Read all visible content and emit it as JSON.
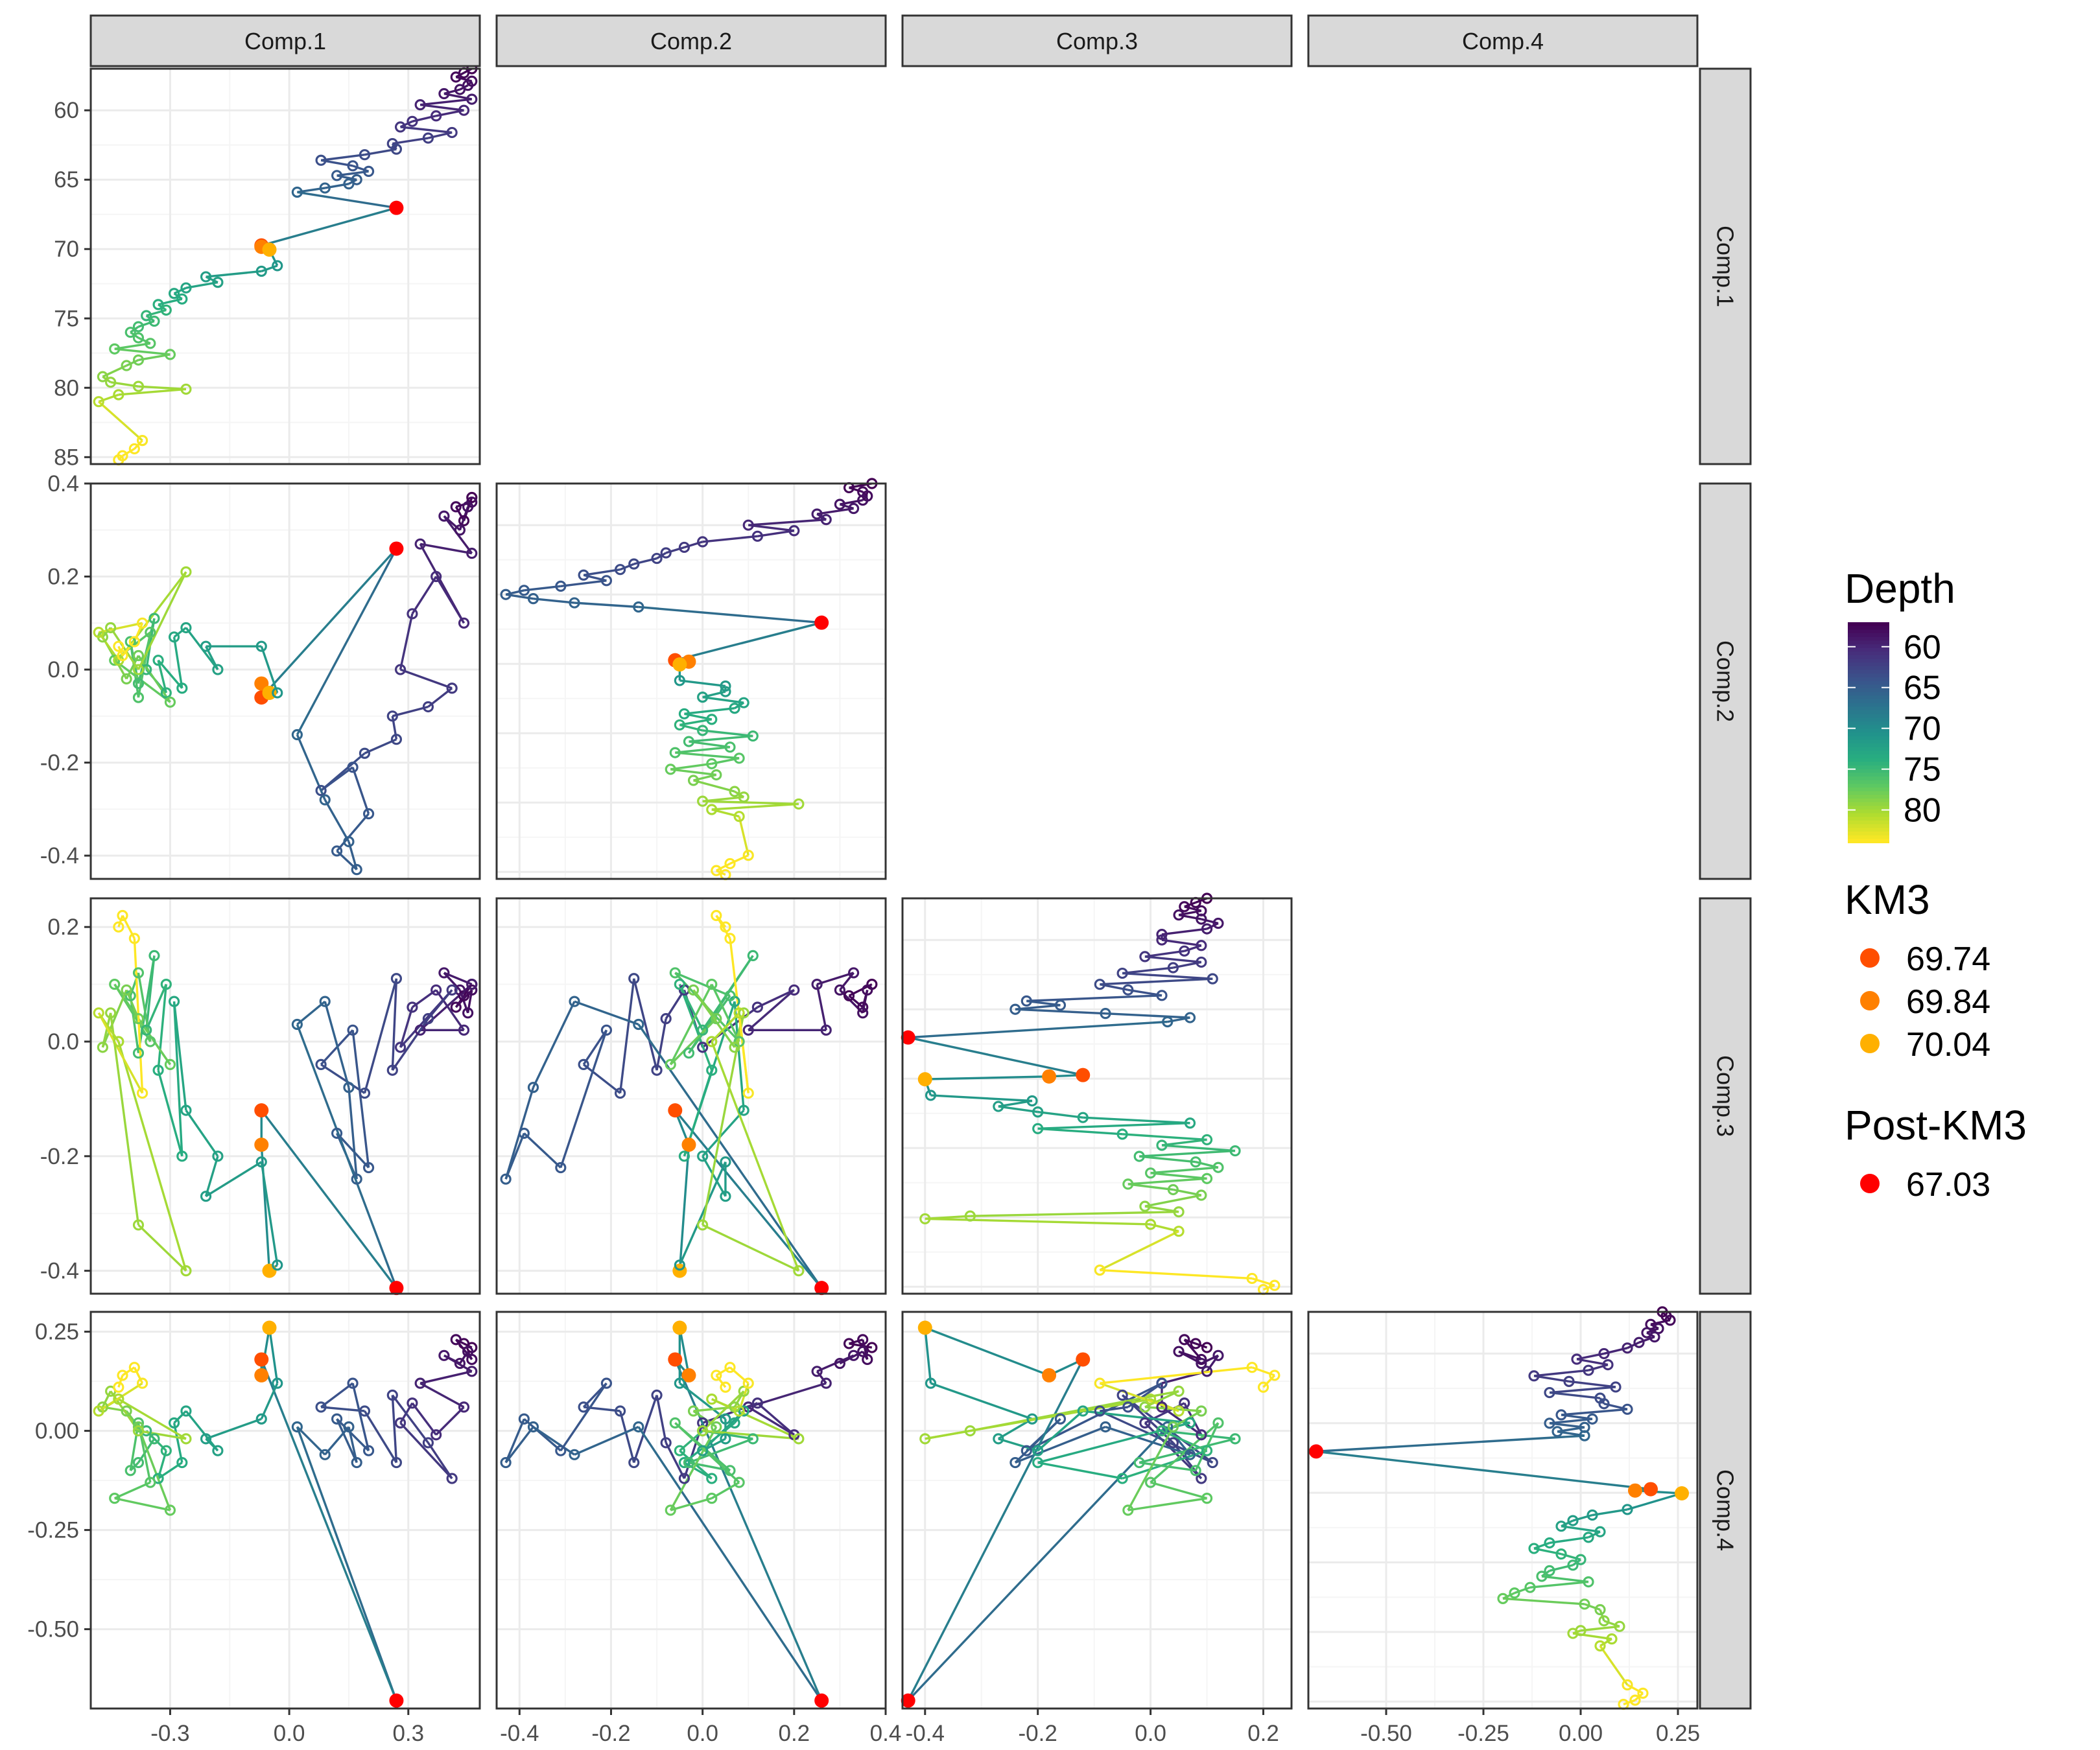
{
  "chart_data": {
    "type": "scatter",
    "layout": "pairs-matrix (lower triangle), points joined by path in depth order",
    "variables": [
      "Comp.1",
      "Comp.2",
      "Comp.3",
      "Comp.4"
    ],
    "diagonal_y_axis": "Depth",
    "color_scale": {
      "title": "Depth",
      "palette": "viridis (reversed: shallow = dark purple, deep = yellow)",
      "breaks": [
        "60",
        "65",
        "70",
        "75",
        "80"
      ],
      "range": [
        57,
        84
      ]
    },
    "axes": {
      "Comp.1": {
        "range": [
          -0.5,
          0.48
        ],
        "ticks": [
          "-0.3",
          "0.0",
          "0.3"
        ]
      },
      "Comp.2": {
        "range": [
          -0.45,
          0.4
        ],
        "ticks": [
          "-0.4",
          "-0.2",
          "0.0",
          "0.2",
          "0.4"
        ]
      },
      "Comp.3": {
        "range": [
          -0.44,
          0.25
        ],
        "ticks": [
          "-0.4",
          "-0.2",
          "0.0",
          "0.2"
        ]
      },
      "Comp.4": {
        "range": [
          -0.7,
          0.3
        ],
        "ticks": [
          "-0.50",
          "-0.25",
          "0.00",
          "0.25"
        ]
      },
      "Depth": {
        "range": [
          57,
          85.5
        ],
        "reversed": true,
        "ticks": [
          "60",
          "65",
          "70",
          "75",
          "80",
          "85"
        ]
      }
    },
    "observations": [
      {
        "depth": 57.0,
        "c1": 0.46,
        "c2": 0.37,
        "c3": 0.1,
        "c4": 0.21
      },
      {
        "depth": 57.3,
        "c1": 0.44,
        "c2": 0.32,
        "c3": 0.08,
        "c4": 0.22
      },
      {
        "depth": 57.6,
        "c1": 0.42,
        "c2": 0.35,
        "c3": 0.06,
        "c4": 0.23
      },
      {
        "depth": 57.9,
        "c1": 0.46,
        "c2": 0.36,
        "c3": 0.09,
        "c4": 0.18
      },
      {
        "depth": 58.2,
        "c1": 0.45,
        "c2": 0.35,
        "c3": 0.05,
        "c4": 0.2
      },
      {
        "depth": 58.5,
        "c1": 0.43,
        "c2": 0.3,
        "c3": 0.09,
        "c4": 0.17
      },
      {
        "depth": 58.8,
        "c1": 0.39,
        "c2": 0.33,
        "c3": 0.12,
        "c4": 0.19
      },
      {
        "depth": 59.2,
        "c1": 0.46,
        "c2": 0.25,
        "c3": 0.1,
        "c4": 0.15
      },
      {
        "depth": 59.6,
        "c1": 0.33,
        "c2": 0.27,
        "c3": 0.02,
        "c4": 0.12
      },
      {
        "depth": 60.0,
        "c1": 0.44,
        "c2": 0.1,
        "c3": 0.02,
        "c4": 0.06
      },
      {
        "depth": 60.4,
        "c1": 0.37,
        "c2": 0.2,
        "c3": 0.09,
        "c4": -0.01
      },
      {
        "depth": 60.8,
        "c1": 0.31,
        "c2": 0.12,
        "c3": 0.06,
        "c4": 0.07
      },
      {
        "depth": 61.2,
        "c1": 0.28,
        "c2": 0.0,
        "c3": -0.01,
        "c4": 0.02
      },
      {
        "depth": 61.6,
        "c1": 0.41,
        "c2": -0.04,
        "c3": 0.09,
        "c4": -0.12
      },
      {
        "depth": 62.0,
        "c1": 0.35,
        "c2": -0.08,
        "c3": 0.04,
        "c4": -0.03
      },
      {
        "depth": 62.4,
        "c1": 0.26,
        "c2": -0.1,
        "c3": -0.05,
        "c4": 0.09
      },
      {
        "depth": 62.8,
        "c1": 0.27,
        "c2": -0.15,
        "c3": 0.11,
        "c4": -0.08
      },
      {
        "depth": 63.2,
        "c1": 0.19,
        "c2": -0.18,
        "c3": -0.09,
        "c4": 0.05
      },
      {
        "depth": 63.6,
        "c1": 0.08,
        "c2": -0.26,
        "c3": -0.04,
        "c4": 0.06
      },
      {
        "depth": 64.0,
        "c1": 0.16,
        "c2": -0.21,
        "c3": 0.02,
        "c4": 0.12
      },
      {
        "depth": 64.4,
        "c1": 0.2,
        "c2": -0.31,
        "c3": -0.22,
        "c4": -0.05
      },
      {
        "depth": 64.7,
        "c1": 0.12,
        "c2": -0.39,
        "c3": -0.16,
        "c4": 0.03
      },
      {
        "depth": 65.0,
        "c1": 0.17,
        "c2": -0.43,
        "c3": -0.24,
        "c4": -0.08
      },
      {
        "depth": 65.3,
        "c1": 0.15,
        "c2": -0.37,
        "c3": -0.08,
        "c4": 0.01
      },
      {
        "depth": 65.6,
        "c1": 0.09,
        "c2": -0.28,
        "c3": 0.07,
        "c4": -0.06
      },
      {
        "depth": 65.9,
        "c1": 0.02,
        "c2": -0.14,
        "c3": 0.03,
        "c4": 0.01
      },
      {
        "depth": 67.03,
        "c1": 0.27,
        "c2": 0.26,
        "c3": -0.43,
        "c4": -0.68,
        "label": "Post-KM3"
      },
      {
        "depth": 69.74,
        "c1": -0.07,
        "c2": -0.06,
        "c3": -0.12,
        "c4": 0.18,
        "label": "KM3"
      },
      {
        "depth": 69.84,
        "c1": -0.07,
        "c2": -0.03,
        "c3": -0.18,
        "c4": 0.14,
        "label": "KM3"
      },
      {
        "depth": 70.04,
        "c1": -0.05,
        "c2": -0.05,
        "c3": -0.4,
        "c4": 0.26,
        "label": "KM3"
      },
      {
        "depth": 71.2,
        "c1": -0.03,
        "c2": -0.05,
        "c3": -0.39,
        "c4": 0.12
      },
      {
        "depth": 71.6,
        "c1": -0.07,
        "c2": 0.05,
        "c3": -0.21,
        "c4": 0.03
      },
      {
        "depth": 72.0,
        "c1": -0.21,
        "c2": 0.05,
        "c3": -0.27,
        "c4": -0.02
      },
      {
        "depth": 72.4,
        "c1": -0.18,
        "c2": 0.0,
        "c3": -0.2,
        "c4": -0.05
      },
      {
        "depth": 72.8,
        "c1": -0.26,
        "c2": 0.09,
        "c3": -0.12,
        "c4": 0.05
      },
      {
        "depth": 73.2,
        "c1": -0.29,
        "c2": 0.07,
        "c3": 0.07,
        "c4": 0.02
      },
      {
        "depth": 73.6,
        "c1": -0.27,
        "c2": -0.04,
        "c3": -0.2,
        "c4": -0.08
      },
      {
        "depth": 74.0,
        "c1": -0.33,
        "c2": 0.02,
        "c3": -0.05,
        "c4": -0.12
      },
      {
        "depth": 74.4,
        "c1": -0.31,
        "c2": -0.05,
        "c3": 0.1,
        "c4": -0.05
      },
      {
        "depth": 74.8,
        "c1": -0.36,
        "c2": 0.0,
        "c3": 0.02,
        "c4": 0.0
      },
      {
        "depth": 75.2,
        "c1": -0.34,
        "c2": 0.11,
        "c3": 0.15,
        "c4": -0.02
      },
      {
        "depth": 75.6,
        "c1": -0.38,
        "c2": -0.03,
        "c3": -0.02,
        "c4": -0.08
      },
      {
        "depth": 76.0,
        "c1": -0.4,
        "c2": 0.06,
        "c3": 0.08,
        "c4": -0.1
      },
      {
        "depth": 76.4,
        "c1": -0.38,
        "c2": -0.06,
        "c3": 0.12,
        "c4": 0.02
      },
      {
        "depth": 76.8,
        "c1": -0.35,
        "c2": 0.08,
        "c3": 0.0,
        "c4": -0.13
      },
      {
        "depth": 77.2,
        "c1": -0.44,
        "c2": 0.02,
        "c3": 0.1,
        "c4": -0.17
      },
      {
        "depth": 77.6,
        "c1": -0.3,
        "c2": -0.07,
        "c3": -0.04,
        "c4": -0.2
      },
      {
        "depth": 78.0,
        "c1": -0.38,
        "c2": 0.03,
        "c3": 0.04,
        "c4": 0.01
      },
      {
        "depth": 78.4,
        "c1": -0.41,
        "c2": -0.02,
        "c3": 0.09,
        "c4": 0.05
      },
      {
        "depth": 79.2,
        "c1": -0.47,
        "c2": 0.07,
        "c3": -0.01,
        "c4": 0.06
      },
      {
        "depth": 79.6,
        "c1": -0.45,
        "c2": 0.09,
        "c3": 0.05,
        "c4": 0.1
      },
      {
        "depth": 79.9,
        "c1": -0.38,
        "c2": 0.0,
        "c3": -0.32,
        "c4": 0.0
      },
      {
        "depth": 80.1,
        "c1": -0.26,
        "c2": 0.21,
        "c3": -0.4,
        "c4": -0.02
      },
      {
        "depth": 80.5,
        "c1": -0.43,
        "c2": 0.02,
        "c3": 0.0,
        "c4": 0.08
      },
      {
        "depth": 81.0,
        "c1": -0.48,
        "c2": 0.08,
        "c3": 0.05,
        "c4": 0.05
      },
      {
        "depth": 83.8,
        "c1": -0.37,
        "c2": 0.1,
        "c3": -0.09,
        "c4": 0.12
      },
      {
        "depth": 84.4,
        "c1": -0.39,
        "c2": 0.06,
        "c3": 0.18,
        "c4": 0.16
      },
      {
        "depth": 84.9,
        "c1": -0.42,
        "c2": 0.03,
        "c3": 0.22,
        "c4": 0.14
      },
      {
        "depth": 85.2,
        "c1": -0.43,
        "c2": 0.05,
        "c3": 0.2,
        "c4": 0.11
      }
    ],
    "highlighted": {
      "KM3": {
        "title": "KM3",
        "entries": [
          {
            "label": "69.74",
            "color": "#ff4e00"
          },
          {
            "label": "69.84",
            "color": "#ff8000"
          },
          {
            "label": "70.04",
            "color": "#ffb000"
          }
        ]
      },
      "Post-KM3": {
        "title": "Post-KM3",
        "entries": [
          {
            "label": "67.03",
            "color": "#ff0000"
          }
        ]
      }
    },
    "grid": true
  },
  "strips": {
    "top": [
      "Comp.1",
      "Comp.2",
      "Comp.3",
      "Comp.4"
    ],
    "right": [
      "Comp.1",
      "Comp.2",
      "Comp.3",
      "Comp.4"
    ]
  },
  "legend": {
    "depth_title": "Depth",
    "depth_labels": [
      "60",
      "65",
      "70",
      "75",
      "80"
    ],
    "km3_title": "KM3",
    "km3_labels": [
      "69.74",
      "69.84",
      "70.04"
    ],
    "post_title": "Post-KM3",
    "post_labels": [
      "67.03"
    ]
  },
  "colors": {
    "panel_border": "#333333",
    "grid_major": "#ebebeb",
    "grid_minor": "#f5f5f5",
    "strip_fill": "#d9d9d9",
    "strip_border": "#333333",
    "viridis": [
      "#440154",
      "#3b528b",
      "#21918c",
      "#5ec962",
      "#fde725"
    ]
  }
}
